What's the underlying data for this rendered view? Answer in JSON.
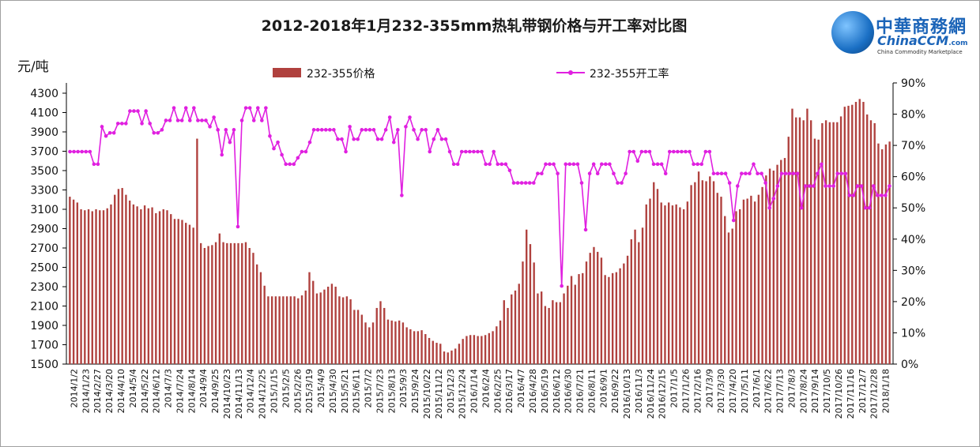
{
  "title": "2012-2018年1月232-355mm热轧带钢价格与开工率对比图",
  "y_unit": "元/吨",
  "logo": {
    "cn": "中華商務網",
    "en": "ChinaCCM",
    "dotcom": ".com",
    "sub": "China Commodity Marketplace"
  },
  "colors": {
    "bar": "#b0413e",
    "line": "#e020e0",
    "axis": "#000000"
  },
  "chart_data": {
    "type": "bar+line",
    "title": "2012-2018年1月232-355mm热轧带钢价格与开工率对比图",
    "y_left_label": "元/吨",
    "y_left_range": [
      1500,
      4300
    ],
    "y_left_ticks": [
      1500,
      1700,
      1900,
      2100,
      2300,
      2500,
      2700,
      2900,
      3100,
      3300,
      3500,
      3700,
      3900,
      4100,
      4300
    ],
    "y_right_range": [
      0,
      90
    ],
    "y_right_ticks": [
      "0%",
      "10%",
      "20%",
      "30%",
      "40%",
      "50%",
      "60%",
      "70%",
      "80%",
      "90%"
    ],
    "legend_position": "top",
    "x_tick_labels": [
      "2014/1/2",
      "2014/1/23",
      "2014/2/27",
      "2014/3/20",
      "2014/4/10",
      "2014/5/4",
      "2014/5/22",
      "2014/6/12",
      "2014/7/3",
      "2014/7/24",
      "2014/8/14",
      "2014/9/4",
      "2014/9/25",
      "2014/10/23",
      "2014/11/13",
      "2014/12/4",
      "2014/12/25",
      "2015/1/15",
      "2015/2/5",
      "2015/2/26",
      "2015/3/19",
      "2015/4/9",
      "2015/4/30",
      "2015/5/21",
      "2015/6/11",
      "2015/7/2",
      "2015/7/23",
      "2015/8/13",
      "2015/9/3",
      "2015/9/24",
      "2015/10/22",
      "2015/11/12",
      "2015/12/3",
      "2015/12/24",
      "2016/1/14",
      "2016/2/4",
      "2016/2/25",
      "2016/3/17",
      "2016/4/7",
      "2016/4/28",
      "2016/5/19",
      "2016/6/12",
      "2016/6/30",
      "2016/7/21",
      "2016/8/11",
      "2016/9/1",
      "2016/9/22",
      "2016/10/13",
      "2016/11/3",
      "2016/11/24",
      "2016/12/15",
      "2017/1/5",
      "2017/1/26",
      "2017/2/16",
      "2017/3/9",
      "2017/3/30",
      "2017/4/20",
      "2017/5/11",
      "2017/6/1",
      "2017/6/22",
      "2017/7/13",
      "2017/8/3",
      "2017/8/24",
      "2017/9/14",
      "2017/10/5",
      "2017/10/26",
      "2017/11/16",
      "2017/12/7",
      "2017/12/28",
      "2018/1/18"
    ],
    "series": [
      {
        "name": "232-355价格",
        "kind": "bar",
        "axis": "left",
        "values": [
          3230,
          3200,
          3170,
          3100,
          3090,
          3100,
          3080,
          3100,
          3090,
          3090,
          3110,
          3150,
          3250,
          3310,
          3320,
          3250,
          3190,
          3150,
          3130,
          3100,
          3140,
          3110,
          3120,
          3060,
          3080,
          3100,
          3090,
          3050,
          3000,
          3000,
          2990,
          2960,
          2940,
          2910,
          3830,
          2750,
          2700,
          2720,
          2730,
          2760,
          2850,
          2760,
          2750,
          2750,
          2750,
          2750,
          2750,
          2760,
          2700,
          2650,
          2530,
          2450,
          2310,
          2200,
          2200,
          2200,
          2200,
          2200,
          2200,
          2200,
          2200,
          2180,
          2210,
          2260,
          2450,
          2360,
          2230,
          2240,
          2270,
          2300,
          2330,
          2300,
          2200,
          2190,
          2200,
          2170,
          2060,
          2060,
          2010,
          1930,
          1880,
          1930,
          2080,
          2150,
          2080,
          1960,
          1950,
          1940,
          1950,
          1930,
          1880,
          1860,
          1840,
          1840,
          1850,
          1810,
          1770,
          1740,
          1720,
          1710,
          1630,
          1620,
          1640,
          1660,
          1710,
          1760,
          1790,
          1800,
          1800,
          1790,
          1790,
          1800,
          1820,
          1840,
          1890,
          1950,
          2160,
          2080,
          2220,
          2260,
          2330,
          2560,
          2890,
          2740,
          2550,
          2230,
          2250,
          2100,
          2080,
          2160,
          2140,
          2140,
          2230,
          2310,
          2410,
          2320,
          2430,
          2440,
          2560,
          2650,
          2710,
          2660,
          2600,
          2420,
          2400,
          2440,
          2450,
          2490,
          2540,
          2620,
          2790,
          2890,
          2760,
          2910,
          3150,
          3210,
          3380,
          3310,
          3170,
          3140,
          3170,
          3140,
          3150,
          3120,
          3100,
          3180,
          3350,
          3380,
          3490,
          3400,
          3390,
          3440,
          3390,
          3270,
          3230,
          3030,
          2860,
          2900,
          3080,
          3100,
          3200,
          3210,
          3240,
          3180,
          3250,
          3330,
          3450,
          3520,
          3500,
          3560,
          3610,
          3630,
          3850,
          4140,
          4050,
          4050,
          4020,
          4140,
          4020,
          3830,
          3820,
          3990,
          4020,
          4000,
          4000,
          4000,
          4060,
          4160,
          4170,
          4180,
          4210,
          4240,
          4210,
          4080,
          4020,
          3990,
          3780,
          3720,
          3770,
          3800
        ]
      },
      {
        "name": "232-355开工率",
        "kind": "line",
        "axis": "right",
        "values": [
          68,
          68,
          68,
          68,
          68,
          68,
          64,
          64,
          76,
          73,
          74,
          74,
          77,
          77,
          77,
          81,
          81,
          81,
          77,
          81,
          77,
          74,
          74,
          75,
          78,
          78,
          82,
          78,
          78,
          82,
          78,
          82,
          78,
          78,
          78,
          76,
          79,
          75,
          67,
          75,
          71,
          75,
          44,
          78,
          82,
          82,
          78,
          82,
          78,
          82,
          73,
          69,
          71,
          67,
          64,
          64,
          64,
          66,
          68,
          68,
          71,
          75,
          75,
          75,
          75,
          75,
          75,
          72,
          72,
          68,
          76,
          72,
          72,
          75,
          75,
          75,
          75,
          72,
          72,
          75,
          79,
          71,
          75,
          54,
          76,
          79,
          75,
          72,
          75,
          75,
          68,
          72,
          75,
          72,
          72,
          68,
          64,
          64,
          68,
          68,
          68,
          68,
          68,
          68,
          64,
          64,
          68,
          64,
          64,
          64,
          62,
          58,
          58,
          58,
          58,
          58,
          58,
          61,
          61,
          64,
          64,
          64,
          61,
          25,
          64,
          64,
          64,
          64,
          58,
          43,
          61,
          64,
          61,
          64,
          64,
          64,
          61,
          58,
          58,
          61,
          68,
          68,
          65,
          68,
          68,
          68,
          64,
          64,
          64,
          61,
          68,
          68,
          68,
          68,
          68,
          68,
          64,
          64,
          64,
          68,
          68,
          61,
          61,
          61,
          61,
          58,
          46,
          57,
          61,
          61,
          61,
          64,
          61,
          61,
          58,
          50,
          53,
          57,
          61,
          61,
          61,
          61,
          61,
          50,
          57,
          57,
          57,
          61,
          64,
          57,
          57,
          57,
          61,
          61,
          61,
          54,
          54,
          57,
          57,
          50,
          50,
          57,
          54,
          54,
          54,
          57
        ]
      }
    ]
  }
}
